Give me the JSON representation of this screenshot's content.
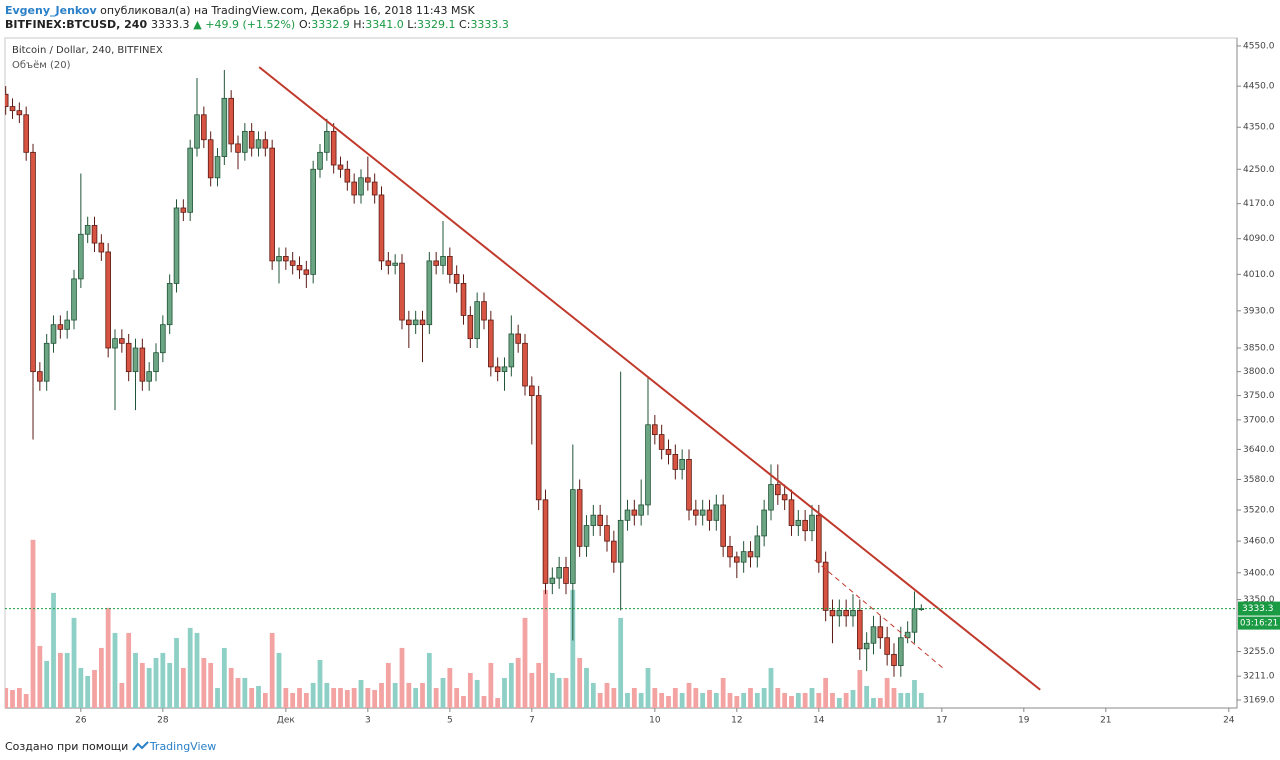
{
  "header": {
    "author": "Evgeny_Jenkov",
    "published": "опубликовал(а) на TradingView.com, Декабрь 16, 2018 11:43 MSK",
    "symbol": "BITFINEX:BTCUSD, 240",
    "price": "3333.3",
    "change": "▲ +49.9 (+1.52%)",
    "ohlc": [
      {
        "label": "O:",
        "value": "3332.9"
      },
      {
        "label": "H:",
        "value": "3341.0"
      },
      {
        "label": "L:",
        "value": "3329.1"
      },
      {
        "label": "C:",
        "value": "3333.3"
      }
    ]
  },
  "footer": {
    "text": "Создано при помощи",
    "brand": "TradingView"
  },
  "chart_data": {
    "type": "candlestick",
    "legend": [
      "Bitcoin / Dollar, 240, BITFINEX",
      "Объём (20)"
    ],
    "countdown": "03:16:21",
    "log_scale": true,
    "grid": false,
    "up_color": "#6ba583",
    "up_border": "#225437",
    "down_color": "#d75442",
    "down_border": "#5b1a13",
    "volume_up_color": "#8ed0c6",
    "volume_down_color": "#f4a3a3",
    "x": [
      0,
      1,
      2,
      3,
      4,
      5,
      6,
      7,
      8,
      9,
      10,
      11,
      12,
      13,
      14,
      15,
      16,
      17,
      18,
      19,
      20,
      21,
      22,
      23,
      24,
      25,
      26,
      27,
      28,
      29,
      30,
      31,
      32,
      33,
      34,
      35,
      36,
      37,
      38,
      39,
      40,
      41,
      42,
      43,
      44,
      45,
      46,
      47,
      48,
      49,
      50,
      51,
      52,
      53,
      54,
      55,
      56,
      57,
      58,
      59,
      60,
      61,
      62,
      63,
      64,
      65,
      66,
      67,
      68,
      69,
      70,
      71,
      72,
      73,
      74,
      75,
      76,
      77,
      78,
      79,
      80,
      81,
      82,
      83,
      84,
      85,
      86,
      87,
      88,
      89,
      90,
      91,
      92,
      93,
      94,
      95,
      96,
      97,
      98,
      99,
      100,
      101,
      102,
      103,
      104,
      105,
      106,
      107,
      108,
      109,
      110,
      111,
      112,
      113,
      114,
      115,
      116,
      117,
      118,
      119,
      120,
      121,
      122,
      123,
      124,
      125,
      126,
      127,
      128,
      129,
      130,
      131,
      132,
      133,
      134
    ],
    "open": [
      4430,
      4400,
      4390,
      4380,
      4290,
      3800,
      3780,
      3860,
      3900,
      3890,
      3910,
      4000,
      4100,
      4120,
      4080,
      4060,
      3850,
      3870,
      3860,
      3800,
      3850,
      3780,
      3800,
      3840,
      3900,
      3990,
      4160,
      4150,
      4300,
      4380,
      4320,
      4230,
      4280,
      4420,
      4310,
      4290,
      4340,
      4300,
      4320,
      4300,
      4040,
      4050,
      4040,
      4030,
      4020,
      4010,
      4250,
      4290,
      4340,
      4260,
      4250,
      4220,
      4190,
      4230,
      4220,
      4190,
      4040,
      4030,
      4035,
      3910,
      3900,
      3910,
      3900,
      4040,
      4030,
      4050,
      4010,
      3990,
      3920,
      3870,
      3950,
      3910,
      3810,
      3800,
      3810,
      3880,
      3860,
      3770,
      3750,
      3540,
      3380,
      3390,
      3410,
      3380,
      3560,
      3450,
      3490,
      3510,
      3490,
      3460,
      3420,
      3500,
      3520,
      3510,
      3530,
      3690,
      3670,
      3640,
      3630,
      3600,
      3620,
      3520,
      3510,
      3520,
      3500,
      3530,
      3450,
      3430,
      3420,
      3440,
      3430,
      3470,
      3520,
      3570,
      3550,
      3540,
      3490,
      3500,
      3480,
      3510,
      3420,
      3330,
      3320,
      3330,
      3320,
      3330,
      3260,
      3270,
      3300,
      3280,
      3250,
      3230,
      3280,
      3290,
      3332.9
    ],
    "high": [
      4450,
      4420,
      4410,
      4400,
      4310,
      3820,
      3880,
      3920,
      3920,
      3930,
      4020,
      4240,
      4140,
      4140,
      4100,
      4080,
      3890,
      3890,
      3880,
      3870,
      3870,
      3820,
      3860,
      3920,
      4010,
      4180,
      4180,
      4320,
      4470,
      4400,
      4340,
      4300,
      4490,
      4440,
      4330,
      4360,
      4360,
      4340,
      4340,
      4320,
      4070,
      4070,
      4060,
      4050,
      4040,
      4270,
      4310,
      4370,
      4360,
      4280,
      4270,
      4240,
      4250,
      4280,
      4240,
      4210,
      4060,
      4055,
      4055,
      3930,
      3930,
      3930,
      4060,
      4060,
      4130,
      4070,
      4030,
      4010,
      3940,
      3970,
      3970,
      3930,
      3830,
      3830,
      3920,
      3900,
      3880,
      3790,
      3770,
      3560,
      3410,
      3430,
      3430,
      3650,
      3580,
      3510,
      3530,
      3530,
      3510,
      3480,
      3800,
      3540,
      3540,
      3580,
      3790,
      3710,
      3690,
      3660,
      3650,
      3640,
      3640,
      3540,
      3540,
      3540,
      3550,
      3550,
      3470,
      3440,
      3460,
      3460,
      3490,
      3540,
      3610,
      3610,
      3570,
      3560,
      3520,
      3520,
      3530,
      3530,
      3440,
      3350,
      3350,
      3350,
      3360,
      3350,
      3290,
      3320,
      3320,
      3300,
      3270,
      3300,
      3310,
      3365,
      3341
    ],
    "low": [
      4380,
      4370,
      4360,
      4270,
      3660,
      3760,
      3760,
      3840,
      3870,
      3870,
      3890,
      3980,
      4080,
      4060,
      4040,
      3830,
      3720,
      3840,
      3780,
      3720,
      3760,
      3760,
      3780,
      3820,
      3880,
      3970,
      4130,
      4130,
      4280,
      4300,
      4210,
      4210,
      4260,
      4290,
      4250,
      4270,
      4280,
      4280,
      4280,
      4020,
      3990,
      4020,
      4010,
      4000,
      3980,
      3990,
      4230,
      4270,
      4240,
      4230,
      4200,
      4170,
      4170,
      4200,
      4170,
      4020,
      4010,
      4010,
      3890,
      3850,
      3880,
      3820,
      3880,
      4010,
      4010,
      3990,
      3970,
      3900,
      3850,
      3850,
      3890,
      3790,
      3780,
      3760,
      3790,
      3840,
      3750,
      3650,
      3520,
      3360,
      3360,
      3370,
      3360,
      3275,
      3430,
      3430,
      3470,
      3470,
      3440,
      3400,
      3330,
      3480,
      3490,
      3490,
      3510,
      3650,
      3620,
      3610,
      3580,
      3580,
      3500,
      3490,
      3490,
      3480,
      3480,
      3430,
      3410,
      3390,
      3400,
      3410,
      3410,
      3450,
      3500,
      3530,
      3520,
      3470,
      3470,
      3460,
      3460,
      3400,
      3310,
      3270,
      3300,
      3300,
      3300,
      3240,
      3220,
      3250,
      3260,
      3230,
      3210,
      3210,
      3270,
      3270,
      3329.1
    ],
    "close": [
      4400,
      4390,
      4380,
      4290,
      3800,
      3780,
      3860,
      3900,
      3890,
      3910,
      4000,
      4100,
      4120,
      4080,
      4060,
      3850,
      3870,
      3860,
      3800,
      3850,
      3780,
      3800,
      3840,
      3900,
      3990,
      4160,
      4150,
      4300,
      4380,
      4320,
      4230,
      4280,
      4420,
      4310,
      4290,
      4340,
      4300,
      4320,
      4300,
      4040,
      4050,
      4040,
      4030,
      4020,
      4010,
      4250,
      4290,
      4340,
      4260,
      4250,
      4220,
      4190,
      4230,
      4220,
      4190,
      4040,
      4030,
      4035,
      3910,
      3900,
      3910,
      3900,
      4040,
      4030,
      4050,
      4010,
      3990,
      3920,
      3870,
      3950,
      3910,
      3810,
      3800,
      3810,
      3880,
      3860,
      3770,
      3750,
      3540,
      3380,
      3390,
      3410,
      3380,
      3560,
      3450,
      3490,
      3510,
      3490,
      3460,
      3420,
      3500,
      3520,
      3510,
      3530,
      3690,
      3670,
      3640,
      3630,
      3600,
      3620,
      3520,
      3510,
      3520,
      3500,
      3530,
      3450,
      3430,
      3420,
      3440,
      3430,
      3470,
      3520,
      3570,
      3550,
      3540,
      3490,
      3500,
      3480,
      3510,
      3420,
      3330,
      3320,
      3330,
      3320,
      3330,
      3260,
      3270,
      3300,
      3280,
      3250,
      3230,
      3280,
      3290,
      3332.9,
      3333.3
    ],
    "volume": [
      20,
      18,
      20,
      14,
      168,
      62,
      47,
      115,
      55,
      55,
      90,
      40,
      32,
      38,
      60,
      100,
      75,
      25,
      75,
      55,
      45,
      40,
      50,
      55,
      45,
      70,
      40,
      80,
      75,
      50,
      45,
      20,
      60,
      40,
      30,
      30,
      20,
      22,
      15,
      75,
      55,
      20,
      15,
      20,
      15,
      25,
      48,
      25,
      20,
      20,
      18,
      20,
      28,
      20,
      18,
      25,
      45,
      25,
      60,
      25,
      20,
      25,
      55,
      20,
      30,
      40,
      20,
      12,
      35,
      28,
      12,
      45,
      10,
      30,
      45,
      50,
      90,
      35,
      45,
      118,
      35,
      30,
      30,
      118,
      50,
      40,
      25,
      15,
      25,
      20,
      90,
      15,
      20,
      15,
      40,
      20,
      15,
      12,
      20,
      15,
      25,
      20,
      15,
      18,
      15,
      30,
      15,
      12,
      15,
      20,
      15,
      20,
      40,
      20,
      15,
      12,
      15,
      15,
      20,
      15,
      30,
      15,
      10,
      15,
      18,
      38,
      22,
      10,
      10,
      30,
      20,
      15,
      15,
      28,
      15
    ],
    "volume_ylim": [
      0,
      170
    ],
    "xlim": [
      -0.1,
      180.2
    ],
    "ylim": [
      3155,
      4570
    ],
    "xticks": [
      {
        "value": 11,
        "label": "26"
      },
      {
        "value": 23,
        "label": "28"
      },
      {
        "value": 41,
        "label": "Дек"
      },
      {
        "value": 53,
        "label": "3"
      },
      {
        "value": 65,
        "label": "5"
      },
      {
        "value": 77,
        "label": "7"
      },
      {
        "value": 95,
        "label": "10"
      },
      {
        "value": 107,
        "label": "12"
      },
      {
        "value": 119,
        "label": "14"
      },
      {
        "value": 137,
        "label": "17"
      },
      {
        "value": 149,
        "label": "19"
      },
      {
        "value": 161,
        "label": "21"
      },
      {
        "value": 179,
        "label": "24"
      }
    ],
    "yticks": [
      {
        "value": 4550,
        "label": "4550.0"
      },
      {
        "value": 4450,
        "label": "4450.0"
      },
      {
        "value": 4350,
        "label": "4350.0"
      },
      {
        "value": 4250,
        "label": "4250.0"
      },
      {
        "value": 4170,
        "label": "4170.0"
      },
      {
        "value": 4090,
        "label": "4090.0"
      },
      {
        "value": 4010,
        "label": "4010.0"
      },
      {
        "value": 3930,
        "label": "3930.0"
      },
      {
        "value": 3850,
        "label": "3850.0"
      },
      {
        "value": 3800,
        "label": "3800.0"
      },
      {
        "value": 3750,
        "label": "3750.0"
      },
      {
        "value": 3700,
        "label": "3700.0"
      },
      {
        "value": 3640,
        "label": "3640.0"
      },
      {
        "value": 3580,
        "label": "3580.0"
      },
      {
        "value": 3520,
        "label": "3520.0"
      },
      {
        "value": 3460,
        "label": "3460.0"
      },
      {
        "value": 3400,
        "label": "3400.0"
      },
      {
        "value": 3350,
        "label": "3350.0"
      },
      {
        "value": 3255,
        "label": "3255.0"
      },
      {
        "value": 3211,
        "label": "3211.0"
      },
      {
        "value": 3169,
        "label": "3169.0"
      }
    ],
    "price_line_color": "#1a9a43",
    "trendlines": [
      {
        "x": [
          37.1,
          151.4
        ],
        "y": [
          4497,
          3187
        ],
        "color": "#c0392b",
        "dashed": false
      },
      {
        "x": [
          118.4,
          137.5
        ],
        "y": [
          3424,
          3222
        ],
        "color": "#c0392b",
        "dashed": true
      }
    ]
  }
}
